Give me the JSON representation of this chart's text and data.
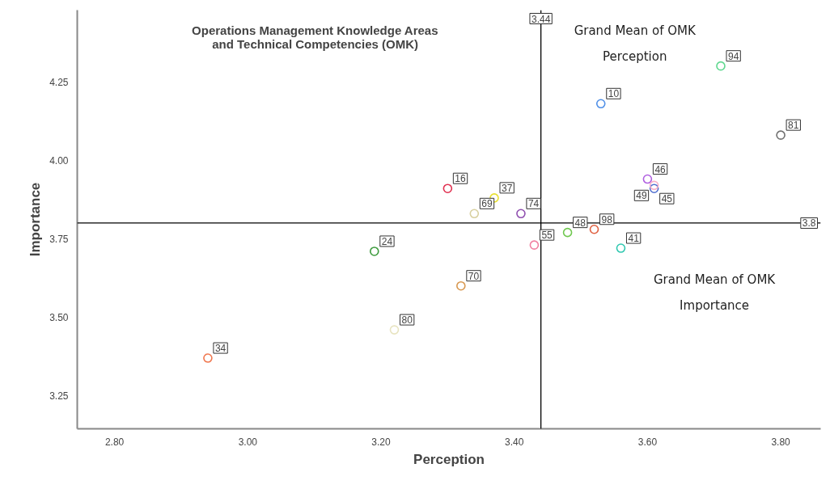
{
  "chart_data": {
    "type": "scatter",
    "title": "Operations Management Knowledge Areas and Technical Competencies (OMK)",
    "xlabel": "Perception",
    "ylabel": "Importance",
    "x": [
      2.94,
      3.19,
      3.22,
      3.32,
      3.3,
      3.37,
      3.34,
      3.41,
      3.43,
      3.48,
      3.52,
      3.56,
      3.53,
      3.71,
      3.8,
      3.6,
      3.61,
      3.61
    ],
    "values": [
      3.37,
      3.71,
      3.46,
      3.6,
      3.91,
      3.88,
      3.83,
      3.83,
      3.73,
      3.77,
      3.78,
      3.72,
      4.18,
      4.3,
      4.08,
      3.94,
      3.91,
      3.92
    ],
    "colors": [
      "#f07850",
      "#3c9a3c",
      "#e8e4c0",
      "#d89850",
      "#e03050",
      "#e8e030",
      "#d8d0a0",
      "#9050b0",
      "#f080a0",
      "#70c850",
      "#e06040",
      "#30c8b0",
      "#5090e8",
      "#60d890",
      "#707070",
      "#b060e0",
      "#5070d0",
      "#f8b0c8"
    ],
    "marker": "circle",
    "xlim": [
      2.744,
      3.86
    ],
    "ylim": [
      3.145,
      4.478
    ],
    "xticks": [
      {
        "value": 2.8,
        "label": "2.80"
      },
      {
        "value": 3.0,
        "label": "3.00"
      },
      {
        "value": 3.2,
        "label": "3.20"
      },
      {
        "value": 3.4,
        "label": "3.40"
      },
      {
        "value": 3.6,
        "label": "3.60"
      },
      {
        "value": 3.8,
        "label": "3.80"
      }
    ],
    "yticks": [
      3.25,
      {
        "value": 3.5,
        "label": "3.50"
      },
      3.75,
      {
        "value": 4.0,
        "label": "4.00"
      },
      4.25
    ],
    "ref_lines": [
      {
        "axis": "x",
        "value": 3.44,
        "label": "3.44",
        "color": "#000000"
      },
      {
        "axis": "y",
        "value": 3.8,
        "label": "3.8",
        "color": "#000000"
      }
    ],
    "annotations": [
      "Grand Mean of OMK Perception",
      "Grand Mean of OMK Importance",
      {
        "text": "34",
        "x": 2.94,
        "y": 3.37
      },
      {
        "text": "24",
        "x": 3.19,
        "y": 3.71
      },
      {
        "text": "80",
        "x": 3.22,
        "y": 3.46
      },
      {
        "text": "70",
        "x": 3.32,
        "y": 3.6
      },
      {
        "text": "16",
        "x": 3.3,
        "y": 3.91
      },
      {
        "text": "37",
        "x": 3.37,
        "y": 3.88
      },
      {
        "text": "69",
        "x": 3.34,
        "y": 3.83
      },
      {
        "text": "74",
        "x": 3.41,
        "y": 3.83
      },
      {
        "text": "55",
        "x": 3.43,
        "y": 3.73
      },
      {
        "text": "48",
        "x": 3.48,
        "y": 3.77
      },
      {
        "text": "98",
        "x": 3.52,
        "y": 3.78
      },
      {
        "text": "41",
        "x": 3.56,
        "y": 3.72
      },
      {
        "text": "10",
        "x": 3.53,
        "y": 4.18
      },
      {
        "text": "94",
        "x": 3.71,
        "y": 4.3
      },
      {
        "text": "81",
        "x": 3.8,
        "y": 4.08
      },
      {
        "text": "46",
        "x": 3.6,
        "y": 3.94
      },
      {
        "text": "45",
        "x": 3.61,
        "y": 3.91
      },
      {
        "text": "49",
        "x": 3.61,
        "y": 3.92
      }
    ],
    "grid": false,
    "legend": false
  }
}
